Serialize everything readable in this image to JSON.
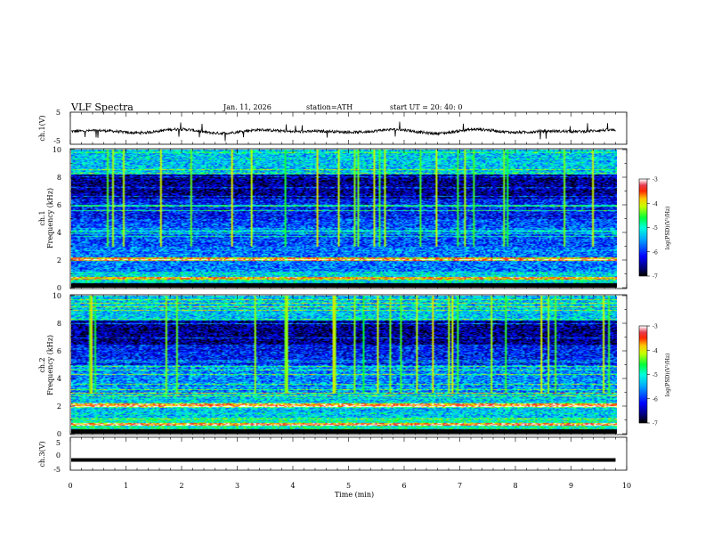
{
  "header": {
    "title": "VLF  Spectra",
    "date": "Jan. 11, 2026",
    "station": "station=ATH",
    "start_ut": "start  UT  =   20: 40: 0"
  },
  "chart_data": [
    {
      "type": "line",
      "id": "ch1-waveform",
      "ylabel": "ch.1(V)",
      "ylim": [
        -5,
        5
      ],
      "yticks": [
        "5",
        "-5"
      ],
      "xlim": [
        0,
        10
      ],
      "note": "noisy waveform around about -1 V, data ends near 9.8 min"
    },
    {
      "type": "heatmap",
      "id": "ch1-spectrogram",
      "ylabel": "ch.1 Frequency (kHz)",
      "ylim": [
        0,
        10
      ],
      "yticks": [
        "0",
        "2",
        "4",
        "6",
        "8",
        "10"
      ],
      "xlim": [
        0,
        9.8
      ],
      "colorbar": {
        "label": "log(PSD)(V²/Hz)",
        "range": [
          -7,
          -3
        ],
        "ticks": [
          "-3",
          "-4",
          "-5",
          "-6",
          "-7"
        ]
      }
    },
    {
      "type": "heatmap",
      "id": "ch2-spectrogram",
      "ylabel": "ch.2 Frequency (kHz)",
      "ylim": [
        0,
        10
      ],
      "yticks": [
        "0",
        "2",
        "4",
        "6",
        "8",
        "10"
      ],
      "xlim": [
        0,
        9.8
      ],
      "colorbar": {
        "label": "log(PSD)(V²/Hz)",
        "range": [
          -7,
          -3
        ],
        "ticks": [
          "-3",
          "-4",
          "-5",
          "-6",
          "-7"
        ]
      }
    },
    {
      "type": "line",
      "id": "ch3-waveform",
      "ylabel": "ch.3(V)",
      "ylim": [
        -5,
        5
      ],
      "yticks": [
        "5",
        "0",
        "-5"
      ],
      "value": -2,
      "xlim": [
        0,
        10
      ]
    }
  ],
  "xaxis": {
    "label": "Time  (min)",
    "range": [
      0,
      10
    ],
    "ticks": [
      "0",
      "1",
      "2",
      "3",
      "4",
      "5",
      "6",
      "7",
      "8",
      "9",
      "10"
    ]
  },
  "labels": {
    "ch1_v": "ch.1(V)",
    "ch1_freq_a": "ch.1",
    "ch1_freq_b": "Frequency  (kHz)",
    "ch2_freq_a": "ch.2",
    "ch2_freq_b": "Frequency  (kHz)",
    "ch3_v": "ch.3(V)",
    "cb_label": "log(PSD)(V²/Hz)"
  }
}
